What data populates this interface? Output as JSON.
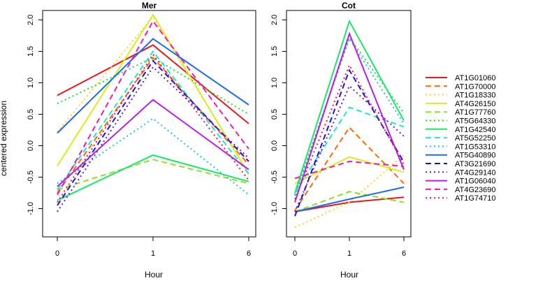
{
  "ylabel": "centered expression",
  "xlabel": "Hour",
  "legend": {
    "position": "right",
    "entries": [
      {
        "name": "AT1G01060",
        "color": "#e8191b",
        "dash": "solid"
      },
      {
        "name": "AT1G70000",
        "color": "#ff6a00",
        "dash": "dashed"
      },
      {
        "name": "AT1G18330",
        "color": "#ffd21e",
        "dash": "dotted"
      },
      {
        "name": "AT4G26150",
        "color": "#d9ee1d",
        "dash": "solid"
      },
      {
        "name": "AT1G77760",
        "color": "#8ce320",
        "dash": "dashed"
      },
      {
        "name": "AT5G64330",
        "color": "#23d92c",
        "dash": "dotted"
      },
      {
        "name": "AT1G42540",
        "color": "#1de66d",
        "dash": "solid"
      },
      {
        "name": "AT5G52250",
        "color": "#1de8c8",
        "dash": "dashed"
      },
      {
        "name": "AT1G53310",
        "color": "#19c6ee",
        "dash": "dotted"
      },
      {
        "name": "AT5G40890",
        "color": "#1d6cf0",
        "dash": "solid"
      },
      {
        "name": "AT3G21690",
        "color": "#1b14d6",
        "dash": "dashed"
      },
      {
        "name": "AT4G29140",
        "color": "#6a18e0",
        "dash": "dotted"
      },
      {
        "name": "AT1G06040",
        "color": "#b81de8",
        "dash": "solid"
      },
      {
        "name": "AT4G23690",
        "color": "#ee1ab5",
        "dash": "dashed"
      },
      {
        "name": "AT1G74710",
        "color": "#ee1450",
        "dash": "dotted"
      }
    ]
  },
  "chart_data": [
    {
      "type": "line",
      "title": "Mer",
      "xlabel": "Hour",
      "ylabel": "centered expression",
      "x": [
        "0",
        "1",
        "6"
      ],
      "ylim": [
        -1.45,
        2.15
      ],
      "yticks": [
        "-1.0",
        "-0.5",
        "0.0",
        "0.5",
        "1.0",
        "1.5",
        "2.0"
      ],
      "grid": false,
      "series": [
        {
          "name": "AT1G01060",
          "values": [
            0.8,
            1.6,
            0.35
          ]
        },
        {
          "name": "AT1G70000",
          "values": [
            -0.75,
            1.4,
            -0.3
          ]
        },
        {
          "name": "AT1G18330",
          "values": [
            0.22,
            2.05,
            -0.45
          ]
        },
        {
          "name": "AT4G26150",
          "values": [
            -0.32,
            2.08,
            -0.45
          ]
        },
        {
          "name": "AT1G77760",
          "values": [
            -0.7,
            -0.22,
            -0.6
          ]
        },
        {
          "name": "AT5G64330",
          "values": [
            0.67,
            1.4,
            0.5
          ]
        },
        {
          "name": "AT1G42540",
          "values": [
            -0.87,
            -0.15,
            -0.57
          ]
        },
        {
          "name": "AT5G52250",
          "values": [
            -0.7,
            1.5,
            -0.45
          ]
        },
        {
          "name": "AT1G53310",
          "values": [
            -0.6,
            0.43,
            -0.78
          ]
        },
        {
          "name": "AT5G40890",
          "values": [
            0.2,
            1.7,
            0.65
          ]
        },
        {
          "name": "AT3G21690",
          "values": [
            -0.95,
            1.35,
            -0.25
          ]
        },
        {
          "name": "AT4G29140",
          "values": [
            -1.05,
            1.25,
            -0.2
          ]
        },
        {
          "name": "AT1G06040",
          "values": [
            -0.65,
            0.73,
            -0.38
          ]
        },
        {
          "name": "AT4G23690",
          "values": [
            -0.78,
            1.98,
            -0.05
          ]
        },
        {
          "name": "AT1G74710",
          "values": [
            -0.9,
            1.45,
            -0.55
          ]
        }
      ]
    },
    {
      "type": "line",
      "title": "Cot",
      "xlabel": "Hour",
      "x": [
        "0",
        "1",
        "6"
      ],
      "ylim": [
        -1.45,
        2.15
      ],
      "yticks": [
        "-1.0",
        "-0.5",
        "0.0",
        "0.5",
        "1.0",
        "1.5",
        "2.0"
      ],
      "grid": false,
      "series": [
        {
          "name": "AT1G01060",
          "values": [
            -1.05,
            -0.9,
            -0.82
          ]
        },
        {
          "name": "AT1G70000",
          "values": [
            -1.03,
            0.29,
            -0.6
          ]
        },
        {
          "name": "AT1G18330",
          "values": [
            -1.3,
            -0.9,
            -0.15
          ]
        },
        {
          "name": "AT4G26150",
          "values": [
            -0.6,
            -0.18,
            -0.42
          ]
        },
        {
          "name": "AT1G77760",
          "values": [
            -1.05,
            -0.73,
            -0.9
          ]
        },
        {
          "name": "AT5G64330",
          "values": [
            -0.78,
            1.72,
            0.52
          ]
        },
        {
          "name": "AT1G42540",
          "values": [
            -0.75,
            1.98,
            0.4
          ]
        },
        {
          "name": "AT5G52250",
          "values": [
            -0.75,
            0.61,
            0.3
          ]
        },
        {
          "name": "AT1G53310",
          "values": [
            -0.8,
            1.7,
            0.35
          ]
        },
        {
          "name": "AT5G40890",
          "values": [
            -1.05,
            -0.85,
            -0.66
          ]
        },
        {
          "name": "AT3G21690",
          "values": [
            -1.12,
            1.2,
            -0.26
          ]
        },
        {
          "name": "AT4G29140",
          "values": [
            -1.05,
            0.95,
            0.15
          ]
        },
        {
          "name": "AT1G06040",
          "values": [
            -0.9,
            1.78,
            -0.38
          ]
        },
        {
          "name": "AT4G23690",
          "values": [
            -0.52,
            -0.25,
            -0.33
          ]
        },
        {
          "name": "AT1G74710",
          "values": [
            -0.85,
            1.28,
            -0.3
          ]
        }
      ]
    }
  ]
}
